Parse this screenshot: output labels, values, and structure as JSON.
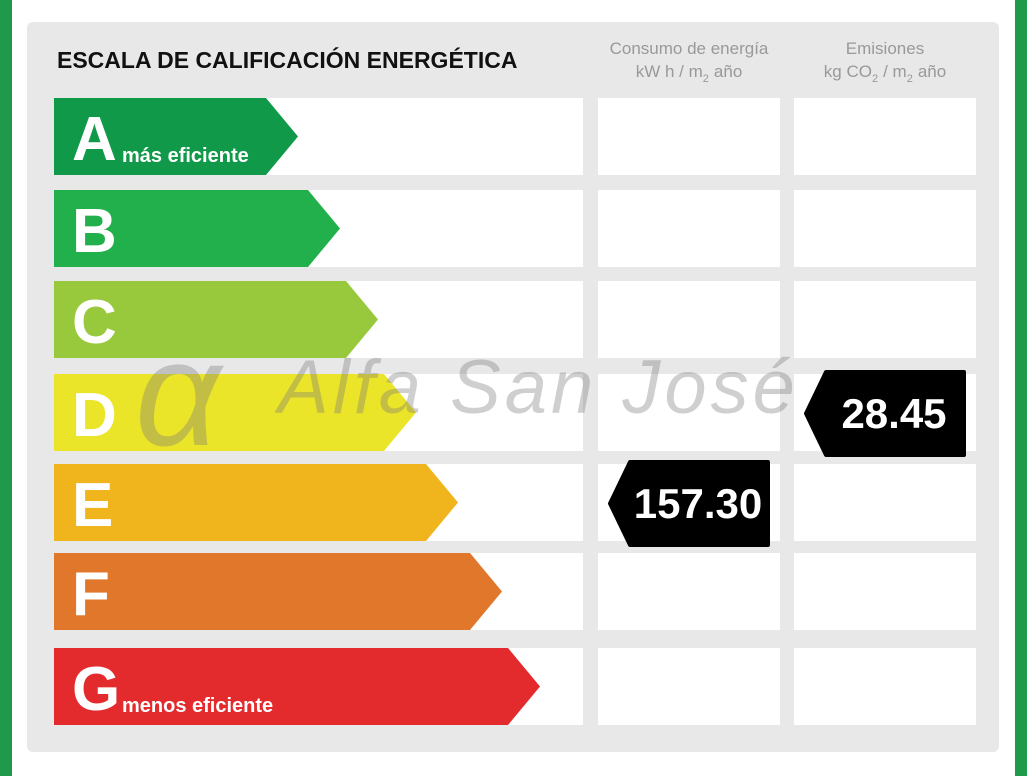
{
  "title": "ESCALA DE CALIFICACIÓN ENERGÉTICA",
  "columns": [
    {
      "title": "Consumo de energía",
      "unit": [
        {
          "text": "kW h / m"
        },
        {
          "text": "2",
          "sub": true
        },
        {
          "text": "año"
        }
      ]
    },
    {
      "title": "Emisiones",
      "unit": [
        {
          "text": "kg CO"
        },
        {
          "text": "2",
          "sub": true
        },
        {
          "text": "/ m"
        },
        {
          "text": "2",
          "sub": true
        },
        {
          "text": "año"
        }
      ]
    }
  ],
  "watermark": {
    "symbol": "α",
    "text": "Alfa San José"
  },
  "rows": [
    {
      "letter": "A",
      "note": "más eficiente",
      "color": "#11994a"
    },
    {
      "letter": "B",
      "color": "#21b04b"
    },
    {
      "letter": "C",
      "color": "#98c93d"
    },
    {
      "letter": "D",
      "color": "#ebe52a",
      "emissions": "28.45"
    },
    {
      "letter": "E",
      "color": "#f0b51d",
      "consumption": "157.30"
    },
    {
      "letter": "F",
      "color": "#e0772b"
    },
    {
      "letter": "G",
      "note": "menos eficiente",
      "color": "#e32a2d"
    }
  ]
}
